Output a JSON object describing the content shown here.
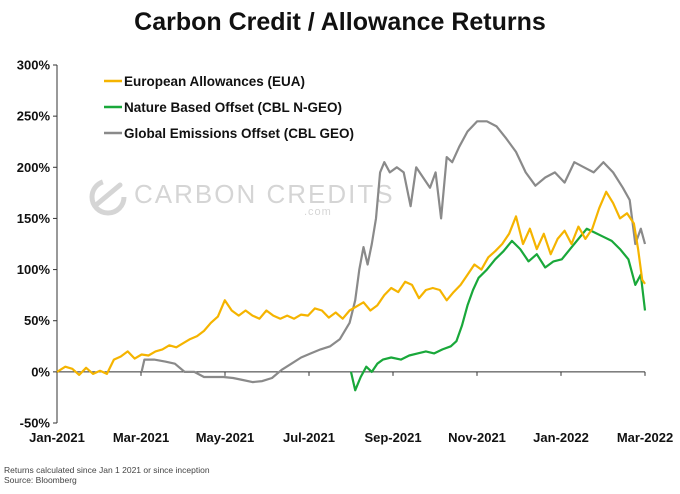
{
  "title": "Carbon Credit / Allowance Returns",
  "watermark": {
    "brand": "CARBON CREDITS",
    "sub": ".com",
    "logo": "carbon-credits-logo"
  },
  "footnote": [
    "Returns calculated since Jan 1 2021 or since inception",
    "Source: Bloomberg"
  ],
  "chart_data": {
    "type": "line",
    "title": "Carbon Credit / Allowance Returns",
    "xlabel": "",
    "ylabel": "",
    "x_ticks": [
      "Jan-2021",
      "Mar-2021",
      "May-2021",
      "Jul-2021",
      "Sep-2021",
      "Nov-2021",
      "Jan-2022",
      "Mar-2022"
    ],
    "y_ticks": [
      "300%",
      "250%",
      "200%",
      "150%",
      "100%",
      "50%",
      "0%",
      "-50%"
    ],
    "ylim": [
      -50,
      300
    ],
    "xlim": [
      "2021-01-01",
      "2022-03-01"
    ],
    "grid": false,
    "legend_position": "top-left",
    "series": [
      {
        "name": "European Allowances (EUA)",
        "color": "#f5b400",
        "points": [
          [
            "2021-01-01",
            0
          ],
          [
            "2021-01-07",
            5
          ],
          [
            "2021-01-12",
            3
          ],
          [
            "2021-01-17",
            -3
          ],
          [
            "2021-01-22",
            4
          ],
          [
            "2021-01-27",
            -2
          ],
          [
            "2021-02-01",
            1
          ],
          [
            "2021-02-06",
            -2
          ],
          [
            "2021-02-11",
            12
          ],
          [
            "2021-02-16",
            15
          ],
          [
            "2021-02-21",
            20
          ],
          [
            "2021-02-26",
            13
          ],
          [
            "2021-03-03",
            17
          ],
          [
            "2021-03-08",
            16
          ],
          [
            "2021-03-13",
            20
          ],
          [
            "2021-03-18",
            22
          ],
          [
            "2021-03-23",
            26
          ],
          [
            "2021-03-28",
            24
          ],
          [
            "2021-04-02",
            28
          ],
          [
            "2021-04-07",
            32
          ],
          [
            "2021-04-12",
            35
          ],
          [
            "2021-04-17",
            40
          ],
          [
            "2021-04-22",
            48
          ],
          [
            "2021-04-27",
            54
          ],
          [
            "2021-05-02",
            70
          ],
          [
            "2021-05-07",
            60
          ],
          [
            "2021-05-12",
            55
          ],
          [
            "2021-05-17",
            60
          ],
          [
            "2021-05-22",
            55
          ],
          [
            "2021-05-27",
            52
          ],
          [
            "2021-06-01",
            60
          ],
          [
            "2021-06-06",
            55
          ],
          [
            "2021-06-11",
            52
          ],
          [
            "2021-06-16",
            55
          ],
          [
            "2021-06-21",
            52
          ],
          [
            "2021-06-26",
            56
          ],
          [
            "2021-07-01",
            55
          ],
          [
            "2021-07-06",
            62
          ],
          [
            "2021-07-11",
            60
          ],
          [
            "2021-07-16",
            53
          ],
          [
            "2021-07-21",
            58
          ],
          [
            "2021-07-26",
            52
          ],
          [
            "2021-07-31",
            60
          ],
          [
            "2021-08-05",
            64
          ],
          [
            "2021-08-10",
            68
          ],
          [
            "2021-08-15",
            60
          ],
          [
            "2021-08-20",
            65
          ],
          [
            "2021-08-25",
            75
          ],
          [
            "2021-08-30",
            82
          ],
          [
            "2021-09-04",
            78
          ],
          [
            "2021-09-09",
            88
          ],
          [
            "2021-09-14",
            85
          ],
          [
            "2021-09-19",
            72
          ],
          [
            "2021-09-24",
            80
          ],
          [
            "2021-09-29",
            82
          ],
          [
            "2021-10-04",
            80
          ],
          [
            "2021-10-09",
            70
          ],
          [
            "2021-10-14",
            78
          ],
          [
            "2021-10-19",
            85
          ],
          [
            "2021-10-24",
            95
          ],
          [
            "2021-10-29",
            105
          ],
          [
            "2021-11-03",
            100
          ],
          [
            "2021-11-08",
            112
          ],
          [
            "2021-11-13",
            118
          ],
          [
            "2021-11-18",
            125
          ],
          [
            "2021-11-23",
            135
          ],
          [
            "2021-11-28",
            152
          ],
          [
            "2021-12-03",
            125
          ],
          [
            "2021-12-08",
            140
          ],
          [
            "2021-12-13",
            120
          ],
          [
            "2021-12-18",
            135
          ],
          [
            "2021-12-23",
            115
          ],
          [
            "2021-12-28",
            130
          ],
          [
            "2022-01-02",
            138
          ],
          [
            "2022-01-07",
            125
          ],
          [
            "2022-01-12",
            142
          ],
          [
            "2022-01-17",
            130
          ],
          [
            "2022-01-22",
            140
          ],
          [
            "2022-01-27",
            160
          ],
          [
            "2022-02-01",
            176
          ],
          [
            "2022-02-06",
            165
          ],
          [
            "2022-02-11",
            150
          ],
          [
            "2022-02-16",
            155
          ],
          [
            "2022-02-21",
            145
          ],
          [
            "2022-02-24",
            120
          ],
          [
            "2022-02-27",
            90
          ],
          [
            "2022-03-01",
            86
          ]
        ]
      },
      {
        "name": "Nature Based Offset (CBL N-GEO)",
        "color": "#19a83a",
        "points": [
          [
            "2021-08-01",
            0
          ],
          [
            "2021-08-04",
            -18
          ],
          [
            "2021-08-08",
            -5
          ],
          [
            "2021-08-12",
            5
          ],
          [
            "2021-08-16",
            0
          ],
          [
            "2021-08-20",
            8
          ],
          [
            "2021-08-24",
            12
          ],
          [
            "2021-08-30",
            14
          ],
          [
            "2021-09-06",
            12
          ],
          [
            "2021-09-12",
            16
          ],
          [
            "2021-09-18",
            18
          ],
          [
            "2021-09-24",
            20
          ],
          [
            "2021-09-30",
            18
          ],
          [
            "2021-10-06",
            22
          ],
          [
            "2021-10-12",
            25
          ],
          [
            "2021-10-16",
            30
          ],
          [
            "2021-10-20",
            45
          ],
          [
            "2021-10-24",
            65
          ],
          [
            "2021-10-28",
            80
          ],
          [
            "2021-11-01",
            92
          ],
          [
            "2021-11-07",
            100
          ],
          [
            "2021-11-13",
            110
          ],
          [
            "2021-11-19",
            118
          ],
          [
            "2021-11-25",
            128
          ],
          [
            "2021-12-01",
            120
          ],
          [
            "2021-12-07",
            108
          ],
          [
            "2021-12-13",
            115
          ],
          [
            "2021-12-19",
            102
          ],
          [
            "2021-12-25",
            108
          ],
          [
            "2021-12-31",
            110
          ],
          [
            "2022-01-06",
            120
          ],
          [
            "2022-01-12",
            130
          ],
          [
            "2022-01-18",
            140
          ],
          [
            "2022-01-24",
            136
          ],
          [
            "2022-01-30",
            132
          ],
          [
            "2022-02-05",
            128
          ],
          [
            "2022-02-11",
            120
          ],
          [
            "2022-02-17",
            110
          ],
          [
            "2022-02-22",
            85
          ],
          [
            "2022-02-26",
            95
          ],
          [
            "2022-03-01",
            60
          ]
        ]
      },
      {
        "name": "Global Emissions Offset (CBL GEO)",
        "color": "#8a8a8a",
        "points": [
          [
            "2021-03-03",
            0
          ],
          [
            "2021-03-05",
            12
          ],
          [
            "2021-03-12",
            12
          ],
          [
            "2021-03-20",
            10
          ],
          [
            "2021-03-27",
            8
          ],
          [
            "2021-04-03",
            0
          ],
          [
            "2021-04-10",
            0
          ],
          [
            "2021-04-17",
            -5
          ],
          [
            "2021-04-24",
            -5
          ],
          [
            "2021-05-01",
            -5
          ],
          [
            "2021-05-08",
            -6
          ],
          [
            "2021-05-15",
            -8
          ],
          [
            "2021-05-22",
            -10
          ],
          [
            "2021-05-29",
            -9
          ],
          [
            "2021-06-05",
            -6
          ],
          [
            "2021-06-12",
            2
          ],
          [
            "2021-06-19",
            8
          ],
          [
            "2021-06-26",
            14
          ],
          [
            "2021-07-03",
            18
          ],
          [
            "2021-07-10",
            22
          ],
          [
            "2021-07-17",
            25
          ],
          [
            "2021-07-24",
            32
          ],
          [
            "2021-07-31",
            48
          ],
          [
            "2021-08-04",
            70
          ],
          [
            "2021-08-07",
            100
          ],
          [
            "2021-08-10",
            122
          ],
          [
            "2021-08-13",
            105
          ],
          [
            "2021-08-16",
            125
          ],
          [
            "2021-08-19",
            150
          ],
          [
            "2021-08-22",
            195
          ],
          [
            "2021-08-25",
            205
          ],
          [
            "2021-08-29",
            195
          ],
          [
            "2021-09-03",
            200
          ],
          [
            "2021-09-08",
            195
          ],
          [
            "2021-09-13",
            162
          ],
          [
            "2021-09-17",
            200
          ],
          [
            "2021-09-22",
            190
          ],
          [
            "2021-09-27",
            180
          ],
          [
            "2021-10-01",
            195
          ],
          [
            "2021-10-05",
            150
          ],
          [
            "2021-10-09",
            210
          ],
          [
            "2021-10-13",
            205
          ],
          [
            "2021-10-18",
            220
          ],
          [
            "2021-10-24",
            235
          ],
          [
            "2021-10-31",
            245
          ],
          [
            "2021-11-07",
            245
          ],
          [
            "2021-11-14",
            240
          ],
          [
            "2021-11-21",
            228
          ],
          [
            "2021-11-28",
            215
          ],
          [
            "2021-12-05",
            195
          ],
          [
            "2021-12-12",
            182
          ],
          [
            "2021-12-19",
            190
          ],
          [
            "2021-12-26",
            195
          ],
          [
            "2022-01-02",
            185
          ],
          [
            "2022-01-09",
            205
          ],
          [
            "2022-01-16",
            200
          ],
          [
            "2022-01-23",
            195
          ],
          [
            "2022-01-30",
            205
          ],
          [
            "2022-02-06",
            195
          ],
          [
            "2022-02-13",
            180
          ],
          [
            "2022-02-18",
            168
          ],
          [
            "2022-02-22",
            125
          ],
          [
            "2022-02-26",
            140
          ],
          [
            "2022-03-01",
            125
          ]
        ]
      }
    ]
  }
}
